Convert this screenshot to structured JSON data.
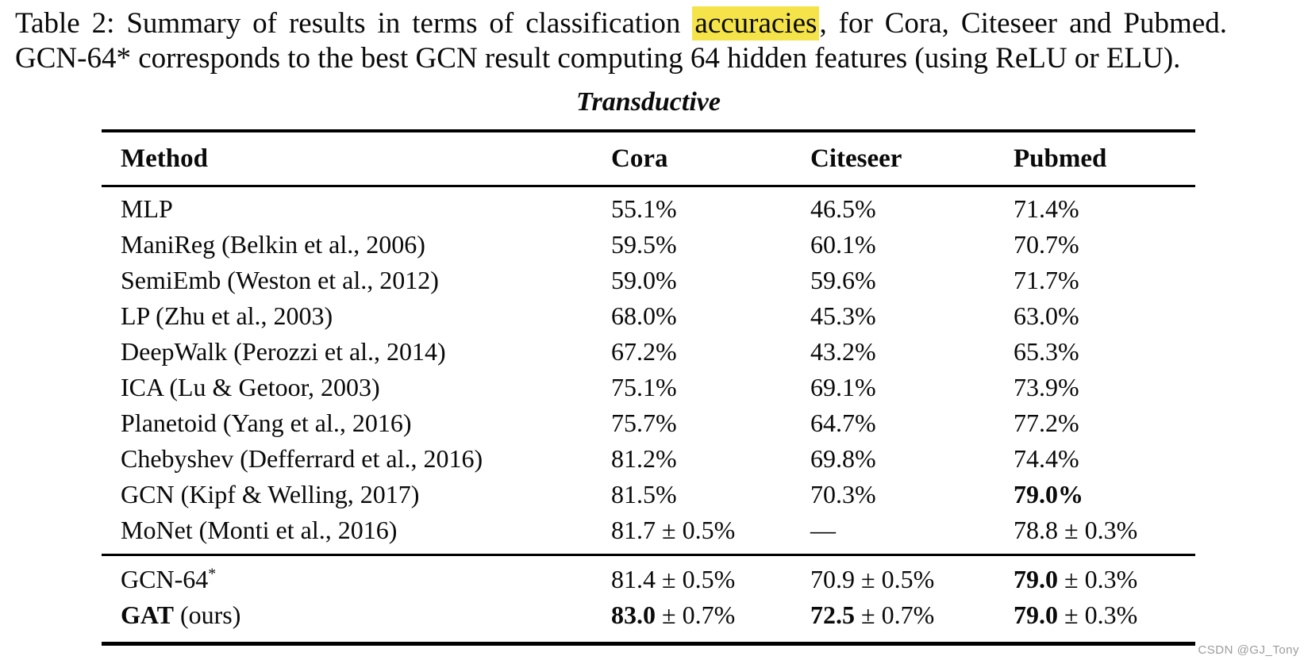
{
  "caption": {
    "line1_pre": "Table 2: Summary of results in terms of classification ",
    "line1_highlight": "accuracies",
    "line1_post": ", for Cora, Citeseer and Pubmed.",
    "line2": "GCN-64* corresponds to the best GCN result computing 64 hidden features (using ReLU or ELU).",
    "highlight_color": "#f5e449"
  },
  "table": {
    "section_title": "Transductive",
    "columns": [
      "Method",
      "Cora",
      "Citeseer",
      "Pubmed"
    ],
    "rows": [
      {
        "cells": [
          {
            "b": "",
            "r": "MLP",
            "sup": ""
          },
          {
            "b": "",
            "r": "55.1%",
            "sup": ""
          },
          {
            "b": "",
            "r": "46.5%",
            "sup": ""
          },
          {
            "b": "",
            "r": "71.4%",
            "sup": ""
          }
        ]
      },
      {
        "cells": [
          {
            "b": "",
            "r": "ManiReg (Belkin et al., 2006)",
            "sup": ""
          },
          {
            "b": "",
            "r": "59.5%",
            "sup": ""
          },
          {
            "b": "",
            "r": "60.1%",
            "sup": ""
          },
          {
            "b": "",
            "r": "70.7%",
            "sup": ""
          }
        ]
      },
      {
        "cells": [
          {
            "b": "",
            "r": "SemiEmb (Weston et al., 2012)",
            "sup": ""
          },
          {
            "b": "",
            "r": "59.0%",
            "sup": ""
          },
          {
            "b": "",
            "r": "59.6%",
            "sup": ""
          },
          {
            "b": "",
            "r": "71.7%",
            "sup": ""
          }
        ]
      },
      {
        "cells": [
          {
            "b": "",
            "r": "LP (Zhu et al., 2003)",
            "sup": ""
          },
          {
            "b": "",
            "r": "68.0%",
            "sup": ""
          },
          {
            "b": "",
            "r": "45.3%",
            "sup": ""
          },
          {
            "b": "",
            "r": "63.0%",
            "sup": ""
          }
        ]
      },
      {
        "cells": [
          {
            "b": "",
            "r": "DeepWalk (Perozzi et al., 2014)",
            "sup": ""
          },
          {
            "b": "",
            "r": "67.2%",
            "sup": ""
          },
          {
            "b": "",
            "r": "43.2%",
            "sup": ""
          },
          {
            "b": "",
            "r": "65.3%",
            "sup": ""
          }
        ]
      },
      {
        "cells": [
          {
            "b": "",
            "r": "ICA (Lu & Getoor, 2003)",
            "sup": ""
          },
          {
            "b": "",
            "r": "75.1%",
            "sup": ""
          },
          {
            "b": "",
            "r": "69.1%",
            "sup": ""
          },
          {
            "b": "",
            "r": "73.9%",
            "sup": ""
          }
        ]
      },
      {
        "cells": [
          {
            "b": "",
            "r": "Planetoid (Yang et al., 2016)",
            "sup": ""
          },
          {
            "b": "",
            "r": "75.7%",
            "sup": ""
          },
          {
            "b": "",
            "r": "64.7%",
            "sup": ""
          },
          {
            "b": "",
            "r": "77.2%",
            "sup": ""
          }
        ]
      },
      {
        "cells": [
          {
            "b": "",
            "r": "Chebyshev (Defferrard et al., 2016)",
            "sup": ""
          },
          {
            "b": "",
            "r": "81.2%",
            "sup": ""
          },
          {
            "b": "",
            "r": "69.8%",
            "sup": ""
          },
          {
            "b": "",
            "r": "74.4%",
            "sup": ""
          }
        ]
      },
      {
        "cells": [
          {
            "b": "",
            "r": "GCN (Kipf & Welling, 2017)",
            "sup": ""
          },
          {
            "b": "",
            "r": "81.5%",
            "sup": ""
          },
          {
            "b": "",
            "r": "70.3%",
            "sup": ""
          },
          {
            "b": "79.0%",
            "r": "",
            "sup": ""
          }
        ]
      },
      {
        "cells": [
          {
            "b": "",
            "r": "MoNet (Monti et al., 2016)",
            "sup": ""
          },
          {
            "b": "",
            "r": "81.7 ± 0.5%",
            "sup": ""
          },
          {
            "b": "",
            "r": "—",
            "sup": ""
          },
          {
            "b": "",
            "r": "78.8 ± 0.3%",
            "sup": ""
          }
        ]
      }
    ],
    "footer_rows": [
      {
        "cells": [
          {
            "b": "",
            "r": "GCN-64",
            "sup": "*"
          },
          {
            "b": "",
            "r": "81.4 ± 0.5%",
            "sup": ""
          },
          {
            "b": "",
            "r": "70.9 ± 0.5%",
            "sup": ""
          },
          {
            "b": "79.0",
            "r": " ± 0.3%",
            "sup": ""
          }
        ]
      },
      {
        "cells": [
          {
            "b": "GAT",
            "r": " (ours)",
            "sup": ""
          },
          {
            "b": "83.0",
            "r": " ± 0.7%",
            "sup": ""
          },
          {
            "b": "72.5",
            "r": " ± 0.7%",
            "sup": ""
          },
          {
            "b": "79.0",
            "r": " ± 0.3%",
            "sup": ""
          }
        ]
      }
    ]
  },
  "watermark": "CSDN @GJ_Tony"
}
